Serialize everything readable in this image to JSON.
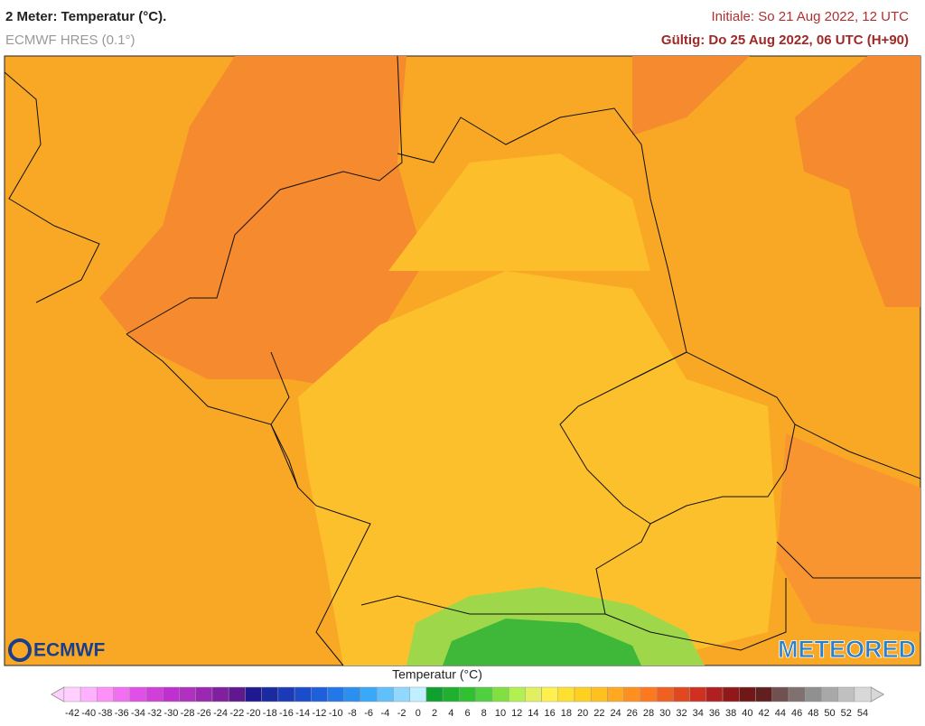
{
  "header": {
    "title": "2 Meter: Temperatur (°C).",
    "model": "ECMWF HRES (0.1°)",
    "initiale": "Initiale: So 21 Aug 2022, 12 UTC",
    "valid": "Gültig: Do 25 Aug 2022, 06 UTC (H+90)"
  },
  "logos": {
    "left": "ECMWF",
    "right": "METEORED"
  },
  "legend": {
    "title": "Temperatur (°C)",
    "ticks": [
      -42,
      -40,
      -38,
      -36,
      -34,
      -32,
      -30,
      -28,
      -26,
      -24,
      -22,
      -20,
      -18,
      -16,
      -14,
      -12,
      -10,
      -8,
      -6,
      -4,
      -2,
      0,
      2,
      4,
      6,
      8,
      10,
      12,
      14,
      16,
      18,
      20,
      22,
      24,
      26,
      28,
      30,
      32,
      34,
      36,
      38,
      40,
      42,
      44,
      46,
      48,
      50,
      52,
      54
    ],
    "colors": [
      "#ffd0ff",
      "#ffb0ff",
      "#ff90f8",
      "#f070f0",
      "#e050e8",
      "#d040d8",
      "#c030d0",
      "#b030c0",
      "#9a28b0",
      "#8020a0",
      "#601890",
      "#201890",
      "#1a2aa0",
      "#1a3ab8",
      "#1a4ccc",
      "#1e60dc",
      "#2278e8",
      "#2a90f0",
      "#3aa8f8",
      "#60c0fc",
      "#90d8ff",
      "#c0f0ff",
      "#10a030",
      "#20b030",
      "#30c030",
      "#50d040",
      "#80e040",
      "#b0f050",
      "#e0f060",
      "#fff050",
      "#ffe030",
      "#ffd020",
      "#ffc020",
      "#ffa820",
      "#ff9020",
      "#ff7820",
      "#f06020",
      "#e04820",
      "#d03020",
      "#b02020",
      "#901818",
      "#701818",
      "#602020",
      "#705050",
      "#807070",
      "#909090",
      "#a8a8a8",
      "#c0c0c0",
      "#d8d8d8"
    ]
  }
}
